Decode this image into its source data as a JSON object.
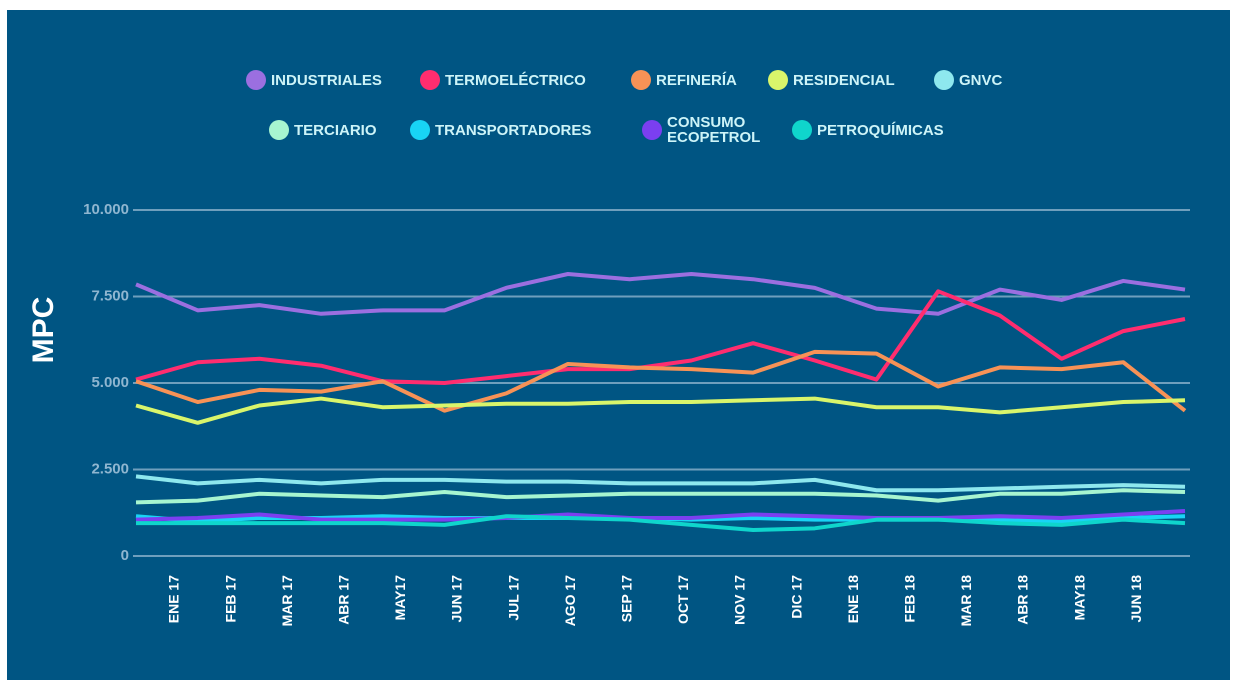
{
  "chart_data": {
    "type": "line",
    "y_label": "MPC",
    "categories": [
      "ENE 17",
      "FEB 17",
      "MAR 17",
      "ABR 17",
      "MAY17",
      "JUN 17",
      "JUL 17",
      "AGO 17",
      "SEP 17",
      "OCT 17",
      "NOV 17",
      "DIC 17",
      "ENE 18",
      "FEB 18",
      "MAR 18",
      "ABR 18",
      "MAY18",
      "JUN 18"
    ],
    "ylim": [
      0,
      10000
    ],
    "yticks": [
      0,
      {
        "value": 2500,
        "label": "2.500"
      },
      {
        "value": 5000,
        "label": "5.000"
      },
      {
        "value": 7500,
        "label": "7.500"
      },
      {
        "value": 10000,
        "label": "10.000"
      }
    ],
    "grid": true,
    "series": [
      {
        "name": "INDUSTRIALES",
        "color": "#9b6fe0",
        "values": [
          7850,
          7100,
          7250,
          7000,
          7100,
          7100,
          7750,
          8150,
          8000,
          8150,
          8000,
          7750,
          7150,
          7000,
          7700,
          7400,
          7950,
          7700
        ]
      },
      {
        "name": "TERMOELÉCTRICO",
        "color": "#ff2d6f",
        "values": [
          5100,
          5600,
          5700,
          5500,
          5050,
          5000,
          5200,
          5400,
          5400,
          5650,
          6150,
          5650,
          5100,
          7650,
          6950,
          5700,
          6500,
          6850
        ]
      },
      {
        "name": "REFINERÍA",
        "color": "#f79256",
        "values": [
          5050,
          4450,
          4800,
          4750,
          5050,
          4200,
          4700,
          5550,
          5450,
          5400,
          5300,
          5900,
          5850,
          4900,
          5450,
          5400,
          5600,
          4200
        ]
      },
      {
        "name": "RESIDENCIAL",
        "color": "#d9f56b",
        "values": [
          4350,
          3850,
          4350,
          4550,
          4300,
          4350,
          4400,
          4400,
          4450,
          4450,
          4500,
          4550,
          4300,
          4300,
          4150,
          4300,
          4450,
          4500
        ]
      },
      {
        "name": "GNVC",
        "color": "#8ee8ee",
        "values": [
          2300,
          2100,
          2200,
          2100,
          2200,
          2200,
          2150,
          2150,
          2100,
          2100,
          2100,
          2200,
          1900,
          1900,
          1950,
          2000,
          2050,
          2000
        ]
      },
      {
        "name": "TERCIARIO",
        "color": "#a7f5d0",
        "values": [
          1550,
          1600,
          1800,
          1750,
          1700,
          1850,
          1700,
          1750,
          1800,
          1800,
          1800,
          1800,
          1750,
          1600,
          1800,
          1800,
          1900,
          1850
        ]
      },
      {
        "name": "TRANSPORTADORES",
        "color": "#18d4f5",
        "values": [
          1150,
          1000,
          1100,
          1100,
          1150,
          1100,
          1100,
          1100,
          1100,
          1050,
          1100,
          1050,
          1050,
          1050,
          1050,
          1000,
          1100,
          1150
        ]
      },
      {
        "name": "CONSUMO ECOPETROL",
        "color": "#7b3ff0",
        "values": [
          1050,
          1100,
          1200,
          1050,
          1050,
          1050,
          1100,
          1200,
          1100,
          1100,
          1200,
          1150,
          1100,
          1100,
          1150,
          1100,
          1200,
          1300
        ]
      },
      {
        "name": "PETROQUÍMICAS",
        "color": "#0fd5cc",
        "values": [
          950,
          950,
          950,
          950,
          950,
          900,
          1150,
          1100,
          1050,
          900,
          750,
          800,
          1050,
          1050,
          950,
          900,
          1050,
          950
        ]
      }
    ]
  }
}
